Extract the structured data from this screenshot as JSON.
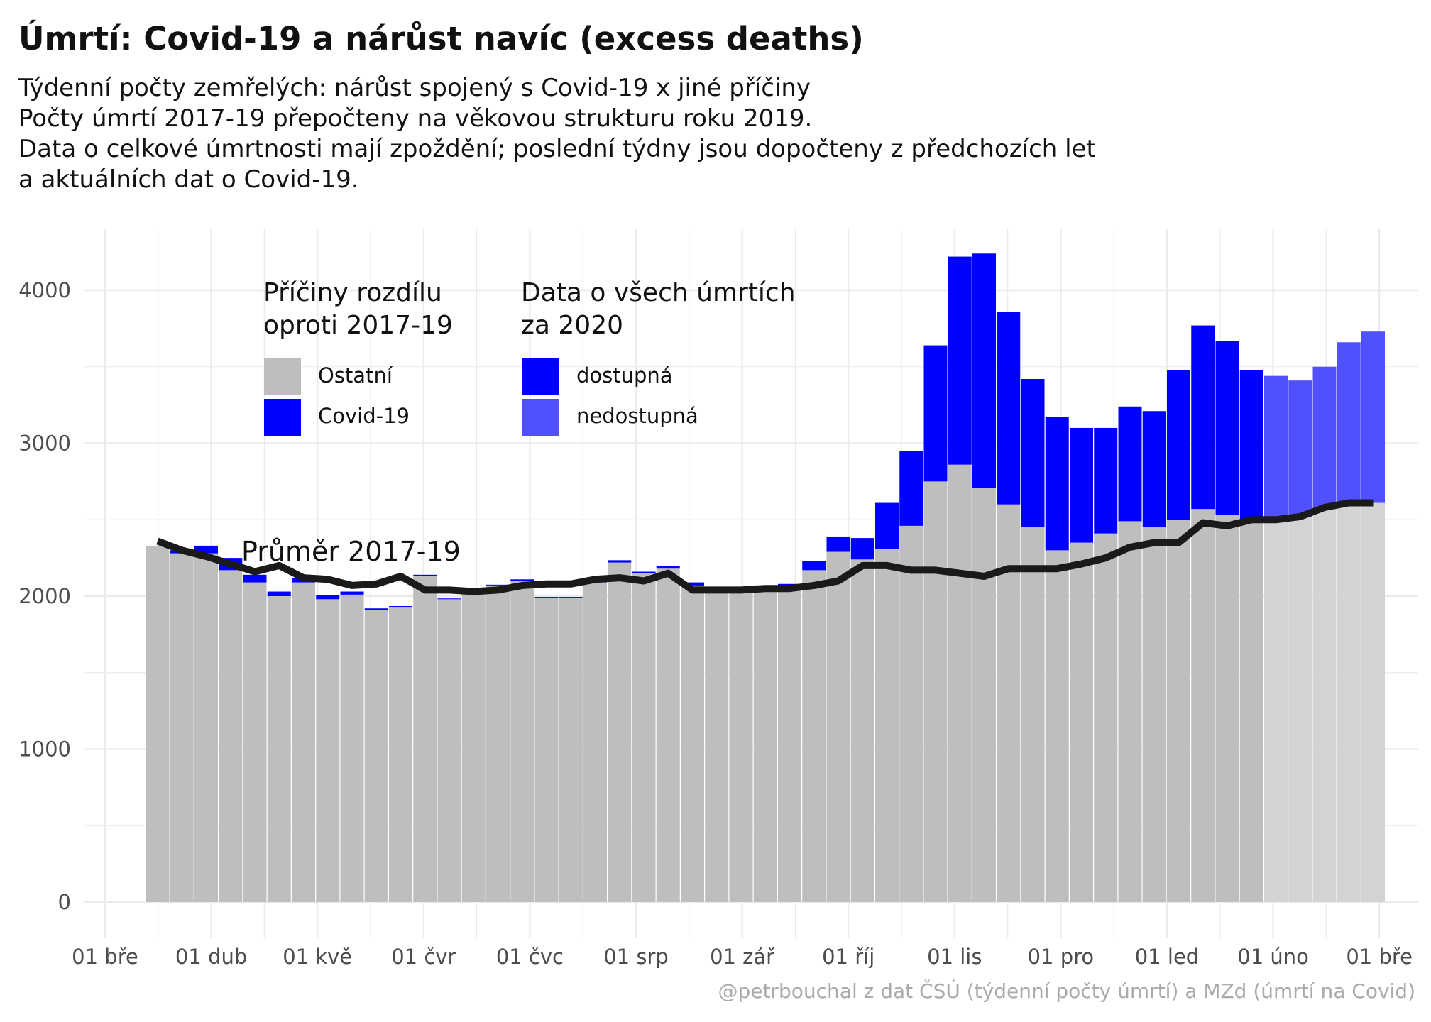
{
  "header": {
    "title": "Úmrtí: Covid-19 a nárůst navíc (excess deaths)",
    "subtitle_lines": [
      "Týdenní počty zemřelých: nárůst spojený s Covid-19 x jiné příčiny",
      "Počty úmrtí 2017-19 přepočteny na věkovou strukturu roku 2019.",
      "Data o celkové úmrtnosti mají zpoždění; poslední týdny jsou dopočteny z předchozích let",
      "a aktuálních dat o Covid-19."
    ]
  },
  "legend": {
    "causes_title": [
      "Příčiny rozdílu",
      "oproti 2017-19"
    ],
    "causes_items": [
      "Ostatní",
      "Covid-19"
    ],
    "availability_title": [
      "Data o všech úmrtích",
      "za 2020"
    ],
    "availability_items": [
      "dostupná",
      "nedostupná"
    ]
  },
  "caption": "@petrbouchal z dat ČSÚ (týdenní počty úmrtí) a MZd (úmrtí na Covid)",
  "colors": {
    "other": "#bebebe",
    "covid": "#0000ff",
    "covid_unavailable": "#5050ff",
    "other_unavailable": "#d3d3d3",
    "line": "#1a1a1a",
    "grid": "#ebebeb",
    "axis_text": "#4d4d4d"
  },
  "chart_data": {
    "type": "bar",
    "stacked": true,
    "x_ticks": [
      "01 bře",
      "01 dub",
      "01 kvě",
      "01 čvr",
      "01 čvc",
      "01 srp",
      "01 zář",
      "01 říj",
      "01 lis",
      "01 pro",
      "01 led",
      "01 úno",
      "01 bře"
    ],
    "y_ticks": [
      0,
      1000,
      2000,
      3000,
      4000
    ],
    "ylim": [
      0,
      4400
    ],
    "grid": true,
    "line_annotation": "Průměr 2017-19",
    "series_names": [
      "Ostatní",
      "Covid-19"
    ],
    "weeks": [
      {
        "other": 2330,
        "covid": 0,
        "avg": 2360,
        "available": true
      },
      {
        "other": 2280,
        "covid": 20,
        "avg": 2300,
        "available": true
      },
      {
        "other": 2280,
        "covid": 50,
        "avg": 2260,
        "available": true
      },
      {
        "other": 2170,
        "covid": 80,
        "avg": 2210,
        "available": true
      },
      {
        "other": 2090,
        "covid": 50,
        "avg": 2160,
        "available": true
      },
      {
        "other": 2000,
        "covid": 30,
        "avg": 2200,
        "available": true
      },
      {
        "other": 2090,
        "covid": 30,
        "avg": 2120,
        "available": true
      },
      {
        "other": 1980,
        "covid": 25,
        "avg": 2110,
        "available": true
      },
      {
        "other": 2010,
        "covid": 20,
        "avg": 2070,
        "available": true
      },
      {
        "other": 1910,
        "covid": 10,
        "avg": 2080,
        "available": true
      },
      {
        "other": 1930,
        "covid": 5,
        "avg": 2130,
        "available": true
      },
      {
        "other": 2130,
        "covid": 10,
        "avg": 2040,
        "available": true
      },
      {
        "other": 1980,
        "covid": 5,
        "avg": 2040,
        "available": true
      },
      {
        "other": 2040,
        "covid": 0,
        "avg": 2030,
        "available": true
      },
      {
        "other": 2070,
        "covid": 5,
        "avg": 2040,
        "available": true
      },
      {
        "other": 2100,
        "covid": 10,
        "avg": 2070,
        "available": true
      },
      {
        "other": 1990,
        "covid": 5,
        "avg": 2080,
        "available": true
      },
      {
        "other": 1990,
        "covid": 5,
        "avg": 2080,
        "available": true
      },
      {
        "other": 2090,
        "covid": 5,
        "avg": 2110,
        "available": true
      },
      {
        "other": 2220,
        "covid": 15,
        "avg": 2120,
        "available": true
      },
      {
        "other": 2150,
        "covid": 10,
        "avg": 2100,
        "available": true
      },
      {
        "other": 2180,
        "covid": 15,
        "avg": 2150,
        "available": true
      },
      {
        "other": 2070,
        "covid": 20,
        "avg": 2040,
        "available": true
      },
      {
        "other": 2040,
        "covid": 5,
        "avg": 2040,
        "available": true
      },
      {
        "other": 2020,
        "covid": 10,
        "avg": 2040,
        "available": true
      },
      {
        "other": 2050,
        "covid": 20,
        "avg": 2050,
        "available": true
      },
      {
        "other": 2060,
        "covid": 20,
        "avg": 2050,
        "available": true
      },
      {
        "other": 2170,
        "covid": 60,
        "avg": 2070,
        "available": true
      },
      {
        "other": 2290,
        "covid": 100,
        "avg": 2100,
        "available": true
      },
      {
        "other": 2240,
        "covid": 140,
        "avg": 2200,
        "available": true
      },
      {
        "other": 2310,
        "covid": 300,
        "avg": 2200,
        "available": true
      },
      {
        "other": 2460,
        "covid": 490,
        "avg": 2170,
        "available": true
      },
      {
        "other": 2750,
        "covid": 890,
        "avg": 2170,
        "available": true
      },
      {
        "other": 2860,
        "covid": 1360,
        "avg": 2150,
        "available": true
      },
      {
        "other": 2710,
        "covid": 1530,
        "avg": 2130,
        "available": true
      },
      {
        "other": 2600,
        "covid": 1260,
        "avg": 2180,
        "available": true
      },
      {
        "other": 2450,
        "covid": 970,
        "avg": 2180,
        "available": true
      },
      {
        "other": 2300,
        "covid": 870,
        "avg": 2180,
        "available": true
      },
      {
        "other": 2350,
        "covid": 750,
        "avg": 2210,
        "available": true
      },
      {
        "other": 2410,
        "covid": 690,
        "avg": 2250,
        "available": true
      },
      {
        "other": 2490,
        "covid": 750,
        "avg": 2320,
        "available": true
      },
      {
        "other": 2450,
        "covid": 760,
        "avg": 2350,
        "available": true
      },
      {
        "other": 2500,
        "covid": 980,
        "avg": 2350,
        "available": true
      },
      {
        "other": 2570,
        "covid": 1200,
        "avg": 2480,
        "available": true
      },
      {
        "other": 2530,
        "covid": 1140,
        "avg": 2460,
        "available": true
      },
      {
        "other": 2490,
        "covid": 990,
        "avg": 2500,
        "available": true
      },
      {
        "other": 2500,
        "covid": 940,
        "avg": 2500,
        "available": false
      },
      {
        "other": 2520,
        "covid": 890,
        "avg": 2520,
        "available": false
      },
      {
        "other": 2570,
        "covid": 930,
        "avg": 2580,
        "available": false
      },
      {
        "other": 2610,
        "covid": 1050,
        "avg": 2610,
        "available": false
      },
      {
        "other": 2610,
        "covid": 1120,
        "avg": 2610,
        "available": false
      }
    ]
  }
}
